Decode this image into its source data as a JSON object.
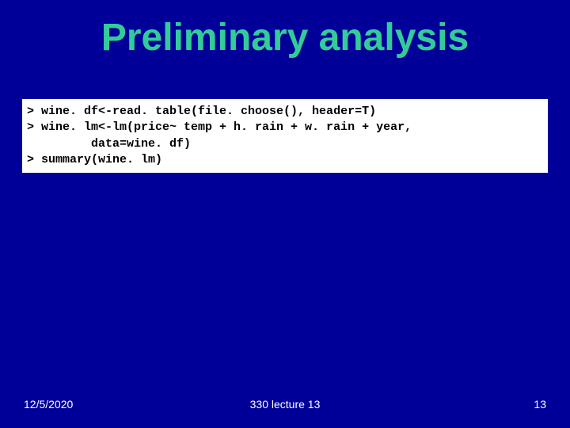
{
  "title": "Preliminary analysis",
  "code": {
    "line1": "> wine. df<-read. table(file. choose(), header=T)",
    "line2": "> wine. lm<-lm(price~ temp + h. rain + w. rain + year,",
    "line3": "         data=wine. df)",
    "line4": "> summary(wine. lm)"
  },
  "footer": {
    "date": "12/5/2020",
    "course": "330 lecture 13",
    "page": "13"
  },
  "colors": {
    "background": "#000099",
    "title": "#33cc99",
    "codebox_bg": "#ffffff",
    "code_text": "#000000",
    "footer_text": "#ffffff"
  },
  "fonts": {
    "title_family": "Comic Sans MS",
    "title_size_pt": 36,
    "title_weight": "bold",
    "code_family": "Courier New",
    "code_size_pt": 11,
    "code_weight": "bold",
    "footer_family": "Arial",
    "footer_size_pt": 10
  }
}
